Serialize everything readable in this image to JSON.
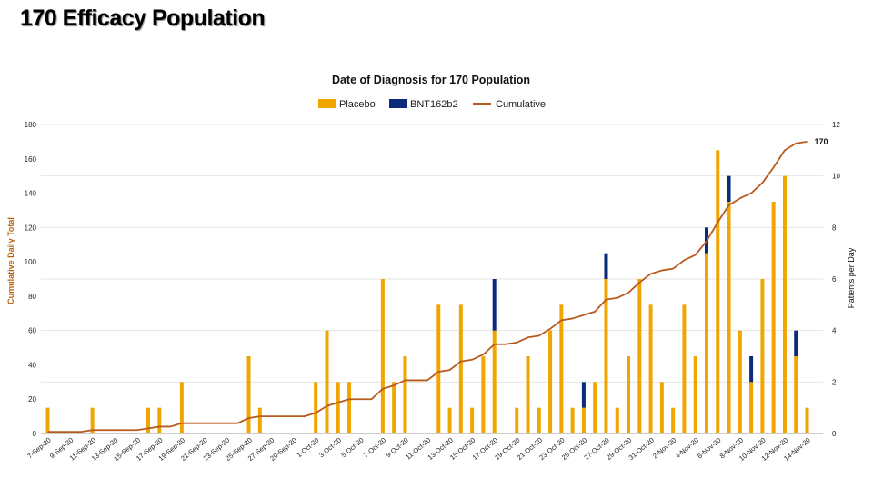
{
  "slide_title": "170 Efficacy Population",
  "colors": {
    "placebo": "#F0A500",
    "vaccine": "#0B2A7A",
    "cumulative": "#B85A1E",
    "axis_left_label": "#B8620C"
  },
  "chart_data": {
    "type": "bar",
    "title": "Date of Diagnosis for 170 Population",
    "ylabel_left": "Cumulative Daily Total",
    "ylabel_right": "Patients per Day",
    "ylim_left": [
      0,
      180
    ],
    "ylim_right": [
      0,
      12
    ],
    "yticks_left": [
      "0",
      "20",
      "40",
      "60",
      "80",
      "100",
      "120",
      "140",
      "160",
      "180"
    ],
    "yticks_right": [
      "0",
      "2",
      "4",
      "6",
      "8",
      "10",
      "12"
    ],
    "legend": [
      "Placebo",
      "BNT162b2",
      "Cumulative"
    ],
    "legend_position": "top",
    "x_tick_labels": [
      "7-Sep-20",
      "9-Sep-20",
      "11-Sep-20",
      "13-Sep-20",
      "15-Sep-20",
      "17-Sep-20",
      "19-Sep-20",
      "21-Sep-20",
      "23-Sep-20",
      "25-Sep-20",
      "27-Sep-20",
      "29-Sep-20",
      "1-Oct-20",
      "3-Oct-20",
      "5-Oct-20",
      "7-Oct-20",
      "9-Oct-20",
      "11-Oct-20",
      "13-Oct-20",
      "15-Oct-20",
      "17-Oct-20",
      "19-Oct-20",
      "21-Oct-20",
      "23-Oct-20",
      "25-Oct-20",
      "27-Oct-20",
      "29-Oct-20",
      "31-Oct-20",
      "2-Nov-20",
      "4-Nov-20",
      "6-Nov-20",
      "8-Nov-20",
      "10-Nov-20",
      "12-Nov-20",
      "14-Nov-20"
    ],
    "days": [
      "7-Sep-20",
      "8-Sep-20",
      "9-Sep-20",
      "10-Sep-20",
      "11-Sep-20",
      "12-Sep-20",
      "13-Sep-20",
      "14-Sep-20",
      "15-Sep-20",
      "16-Sep-20",
      "17-Sep-20",
      "18-Sep-20",
      "19-Sep-20",
      "20-Sep-20",
      "21-Sep-20",
      "22-Sep-20",
      "23-Sep-20",
      "24-Sep-20",
      "25-Sep-20",
      "26-Sep-20",
      "27-Sep-20",
      "28-Sep-20",
      "29-Sep-20",
      "30-Sep-20",
      "1-Oct-20",
      "2-Oct-20",
      "3-Oct-20",
      "4-Oct-20",
      "5-Oct-20",
      "6-Oct-20",
      "7-Oct-20",
      "8-Oct-20",
      "9-Oct-20",
      "10-Oct-20",
      "11-Oct-20",
      "12-Oct-20",
      "13-Oct-20",
      "14-Oct-20",
      "15-Oct-20",
      "16-Oct-20",
      "17-Oct-20",
      "18-Oct-20",
      "19-Oct-20",
      "20-Oct-20",
      "21-Oct-20",
      "22-Oct-20",
      "23-Oct-20",
      "24-Oct-20",
      "25-Oct-20",
      "26-Oct-20",
      "27-Oct-20",
      "28-Oct-20",
      "29-Oct-20",
      "30-Oct-20",
      "31-Oct-20",
      "1-Nov-20",
      "2-Nov-20",
      "3-Nov-20",
      "4-Nov-20",
      "5-Nov-20",
      "6-Nov-20",
      "7-Nov-20",
      "8-Nov-20",
      "9-Nov-20",
      "10-Nov-20",
      "11-Nov-20",
      "12-Nov-20",
      "13-Nov-20",
      "14-Nov-20"
    ],
    "series": [
      {
        "name": "Placebo",
        "axis": "right",
        "values": [
          1,
          0,
          0,
          0,
          1,
          0,
          0,
          0,
          0,
          1,
          1,
          0,
          2,
          0,
          0,
          0,
          0,
          0,
          3,
          1,
          0,
          0,
          0,
          0,
          2,
          4,
          2,
          2,
          0,
          0,
          6,
          2,
          3,
          0,
          0,
          5,
          1,
          5,
          1,
          3,
          4,
          0,
          1,
          3,
          1,
          4,
          5,
          1,
          1,
          2,
          6,
          1,
          3,
          6,
          5,
          2,
          1,
          5,
          3,
          7,
          11,
          9,
          4,
          2,
          6,
          9,
          10,
          3,
          1
        ]
      },
      {
        "name": "BNT162b2",
        "axis": "right",
        "values": [
          0,
          0,
          0,
          0,
          0,
          0,
          0,
          0,
          0,
          0,
          0,
          0,
          0,
          0,
          0,
          0,
          0,
          0,
          0,
          0,
          0,
          0,
          0,
          0,
          0,
          0,
          0,
          0,
          0,
          0,
          0,
          0,
          0,
          0,
          0,
          0,
          0,
          0,
          0,
          0,
          2,
          0,
          0,
          0,
          0,
          0,
          0,
          0,
          1,
          0,
          1,
          0,
          0,
          0,
          0,
          0,
          0,
          0,
          0,
          1,
          0,
          1,
          0,
          1,
          0,
          0,
          0,
          1,
          0
        ]
      },
      {
        "name": "Cumulative",
        "axis": "left",
        "type": "line",
        "values": [
          1,
          1,
          1,
          1,
          2,
          2,
          2,
          2,
          2,
          3,
          4,
          4,
          6,
          6,
          6,
          6,
          6,
          6,
          9,
          10,
          10,
          10,
          10,
          10,
          12,
          16,
          18,
          20,
          20,
          20,
          26,
          28,
          31,
          31,
          31,
          36,
          37,
          42,
          43,
          46,
          52,
          52,
          53,
          56,
          57,
          61,
          66,
          67,
          69,
          71,
          78,
          79,
          82,
          88,
          93,
          95,
          96,
          101,
          104,
          112,
          123,
          133,
          137,
          140,
          146,
          155,
          165,
          169,
          170
        ]
      }
    ],
    "end_label": "170"
  }
}
